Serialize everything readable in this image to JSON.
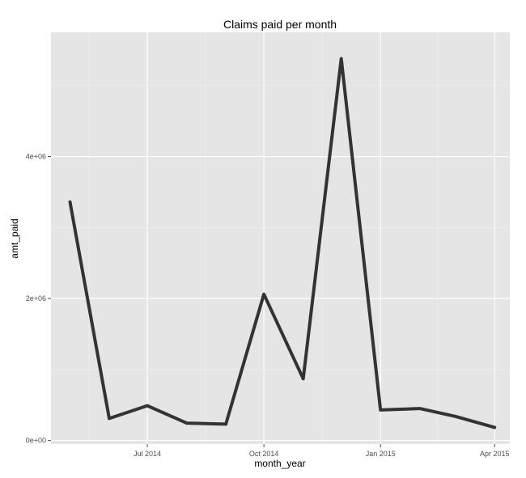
{
  "chart_data": {
    "type": "line",
    "title": "Claims paid per month",
    "xlabel": "month_year",
    "ylabel": "amt_paid",
    "xlim": [
      "2014-04-16",
      "2015-04-13"
    ],
    "ylim": [
      -50000,
      5750000
    ],
    "x_ticks": [
      {
        "date": "2014-07-01",
        "label": "Jul 2014"
      },
      {
        "date": "2014-10-01",
        "label": "Oct 2014"
      },
      {
        "date": "2015-01-01",
        "label": "Jan 2015"
      },
      {
        "date": "2015-04-01",
        "label": "Apr 2015"
      }
    ],
    "x_minor_ticks": [
      "2014-05-16",
      "2014-08-16",
      "2014-11-16",
      "2015-02-15"
    ],
    "y_ticks": [
      {
        "value": 0,
        "label": "0e+00"
      },
      {
        "value": 2000000,
        "label": "2e+06"
      },
      {
        "value": 4000000,
        "label": "4e+06"
      }
    ],
    "y_minor_ticks": [
      1000000,
      3000000,
      5000000
    ],
    "grid": true,
    "background": "#e5e5e5",
    "line_color": "#333333",
    "series": [
      {
        "points": [
          {
            "x": "2014-05-01",
            "y": 3360000
          },
          {
            "x": "2014-06-01",
            "y": 310000
          },
          {
            "x": "2014-07-01",
            "y": 490000
          },
          {
            "x": "2014-08-01",
            "y": 245000
          },
          {
            "x": "2014-09-01",
            "y": 230000
          },
          {
            "x": "2014-10-01",
            "y": 2060000
          },
          {
            "x": "2014-11-01",
            "y": 870000
          },
          {
            "x": "2014-12-01",
            "y": 5380000
          },
          {
            "x": "2015-01-01",
            "y": 430000
          },
          {
            "x": "2015-02-01",
            "y": 450000
          },
          {
            "x": "2015-03-01",
            "y": 340000
          },
          {
            "x": "2015-04-01",
            "y": 185000
          }
        ]
      }
    ]
  }
}
